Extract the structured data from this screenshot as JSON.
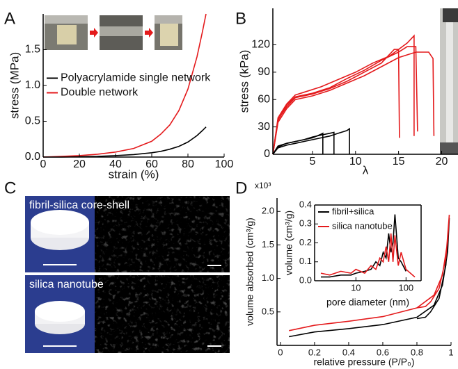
{
  "chart_data": [
    {
      "type": "line",
      "panel": "A",
      "xlabel": "strain (%)",
      "ylabel": "stress (MPa)",
      "xlim": [
        0,
        100
      ],
      "xticks": [
        0,
        20,
        40,
        60,
        80,
        100
      ],
      "ylim": [
        0,
        2.0
      ],
      "yticks": [
        {
          "value": 0,
          "label": "0.0"
        },
        0.5,
        {
          "value": 1,
          "label": "1.0"
        },
        1.5
      ],
      "grid": false,
      "legend": "center left",
      "series": [
        {
          "name": "Polyacrylamide single network",
          "color": "#000000",
          "x": [
            0,
            10,
            20,
            30,
            40,
            50,
            60,
            65,
            70,
            75,
            80,
            85,
            88,
            90
          ],
          "values": [
            0,
            0,
            0.005,
            0.01,
            0.02,
            0.035,
            0.06,
            0.08,
            0.11,
            0.15,
            0.21,
            0.3,
            0.37,
            0.42
          ]
        },
        {
          "name": "Double network",
          "color": "#e41a1c",
          "x": [
            0,
            10,
            20,
            30,
            40,
            50,
            60,
            65,
            70,
            75,
            80,
            85,
            88,
            90
          ],
          "values": [
            0,
            0.01,
            0.02,
            0.04,
            0.07,
            0.12,
            0.22,
            0.32,
            0.45,
            0.65,
            0.95,
            1.4,
            1.75,
            2.0
          ]
        }
      ]
    },
    {
      "type": "line",
      "panel": "B",
      "xlabel": "λ",
      "ylabel": "stress (kPa)",
      "xlim": [
        0.4,
        21.9
      ],
      "xticks": [
        5,
        10,
        15,
        20
      ],
      "ylim": [
        0,
        160
      ],
      "yticks": [
        0,
        30,
        60,
        90,
        120
      ],
      "grid": false,
      "series": [
        {
          "color": "#e41a1c",
          "x": [
            0.4,
            1,
            2,
            3,
            4,
            6,
            8,
            10,
            12,
            14,
            15,
            16,
            16.8,
            16.8
          ],
          "values": [
            0,
            40,
            55,
            65,
            68,
            74,
            82,
            90,
            100,
            108,
            115,
            122,
            130,
            20
          ]
        },
        {
          "color": "#e41a1c",
          "x": [
            0.4,
            1,
            2,
            3,
            5,
            7,
            9,
            11,
            13,
            15,
            17,
            18.5,
            19,
            19.1
          ],
          "values": [
            0,
            35,
            50,
            60,
            64,
            70,
            78,
            86,
            96,
            106,
            112,
            112,
            105,
            20
          ]
        },
        {
          "color": "#e41a1c",
          "x": [
            0.4,
            1,
            2,
            3,
            5,
            7,
            9,
            11,
            13,
            14,
            14.5,
            15,
            15.1
          ],
          "values": [
            0,
            38,
            52,
            62,
            66,
            72,
            80,
            90,
            100,
            110,
            115,
            115,
            18
          ]
        },
        {
          "color": "#e41a1c",
          "x": [
            0.4,
            1,
            2,
            3,
            5,
            7,
            9,
            11,
            13,
            15,
            16,
            17,
            17.2
          ],
          "values": [
            0,
            37,
            54,
            63,
            67,
            73,
            83,
            92,
            103,
            112,
            118,
            118,
            25
          ]
        },
        {
          "color": "#000000",
          "x": [
            0.4,
            1,
            2,
            3,
            4,
            5,
            6,
            6.2,
            6.2
          ],
          "values": [
            0,
            8,
            12,
            14,
            16,
            18,
            22,
            23,
            0
          ]
        },
        {
          "color": "#000000",
          "x": [
            0.4,
            1,
            2,
            3,
            4,
            5,
            6,
            7,
            8,
            9,
            9.3,
            9.3
          ],
          "values": [
            0,
            7,
            10,
            12,
            14,
            16,
            18,
            20,
            23,
            26,
            28,
            0
          ]
        },
        {
          "color": "#000000",
          "x": [
            0.4,
            1,
            2,
            3,
            4,
            5,
            6,
            7,
            7.5,
            7.5
          ],
          "values": [
            0,
            9,
            12,
            14,
            16,
            19,
            21,
            23,
            24,
            0
          ]
        }
      ]
    },
    {
      "type": "image",
      "panel": "C",
      "images": [
        {
          "label": "fibril-silica core-shell"
        },
        {
          "label": "silica nanotube"
        }
      ]
    },
    {
      "type": "line",
      "panel": "D",
      "multiplier": "x10³",
      "xlabel": "relative pressure (P/P₀)",
      "ylabel": "volume absorbed (cm³/g)",
      "xlim": [
        -0.02,
        1.0
      ],
      "xticks": [
        0,
        0.2,
        0.4,
        0.6,
        0.8,
        1
      ],
      "ylim": [
        0,
        2.2
      ],
      "yticks": [
        0.5,
        {
          "value": 1,
          "label": "1.0"
        },
        1.5,
        {
          "value": 2,
          "label": "2.0"
        }
      ],
      "grid": false,
      "series": [
        {
          "name": "fibril+silica",
          "color": "#000000",
          "x": [
            0.05,
            0.2,
            0.4,
            0.6,
            0.8,
            0.9,
            0.95,
            0.98,
            0.99,
            0.97,
            0.93,
            0.88,
            0.85,
            0.8
          ],
          "values": [
            0.13,
            0.2,
            0.25,
            0.31,
            0.42,
            0.6,
            0.9,
            1.4,
            1.9,
            1.2,
            0.7,
            0.5,
            0.42,
            0.4
          ]
        },
        {
          "name": "silica nanotube",
          "color": "#e41a1c",
          "x": [
            0.05,
            0.2,
            0.4,
            0.6,
            0.8,
            0.9,
            0.95,
            0.98,
            0.99,
            0.97,
            0.93,
            0.88,
            0.85,
            0.8
          ],
          "values": [
            0.22,
            0.3,
            0.36,
            0.43,
            0.56,
            0.75,
            1.05,
            1.55,
            1.95,
            1.3,
            0.85,
            0.65,
            0.58,
            0.56
          ]
        }
      ]
    },
    {
      "type": "line",
      "xlabel": "pore diameter (nm)",
      "ylabel": "volume (cm³/g)",
      "xlog": true,
      "xlim": [
        1.5,
        200
      ],
      "xticks": [
        10,
        100
      ],
      "ylim": [
        0,
        0.4
      ],
      "yticks": [
        {
          "value": 0,
          "label": "0.0"
        },
        0.1,
        0.2,
        0.3,
        0.4
      ],
      "grid": false,
      "legend": "upper left",
      "series": [
        {
          "name": "fibril+silica",
          "color": "#000000",
          "x": [
            2,
            3,
            5,
            8,
            10,
            15,
            20,
            25,
            30,
            35,
            40,
            45,
            50,
            55,
            60,
            70,
            80,
            100
          ],
          "values": [
            0.02,
            0.02,
            0.03,
            0.03,
            0.04,
            0.05,
            0.06,
            0.1,
            0.08,
            0.15,
            0.12,
            0.25,
            0.15,
            0.2,
            0.35,
            0.12,
            0.1,
            0.05
          ]
        },
        {
          "name": "silica nanotube",
          "color": "#e41a1c",
          "x": [
            2,
            3,
            5,
            8,
            10,
            15,
            20,
            25,
            30,
            35,
            40,
            45,
            50,
            55,
            60,
            70,
            80,
            100,
            150
          ],
          "values": [
            0.04,
            0.03,
            0.05,
            0.04,
            0.06,
            0.04,
            0.08,
            0.06,
            0.12,
            0.1,
            0.18,
            0.1,
            0.25,
            0.1,
            0.24,
            0.08,
            0.15,
            0.06,
            0.02
          ]
        }
      ]
    }
  ]
}
